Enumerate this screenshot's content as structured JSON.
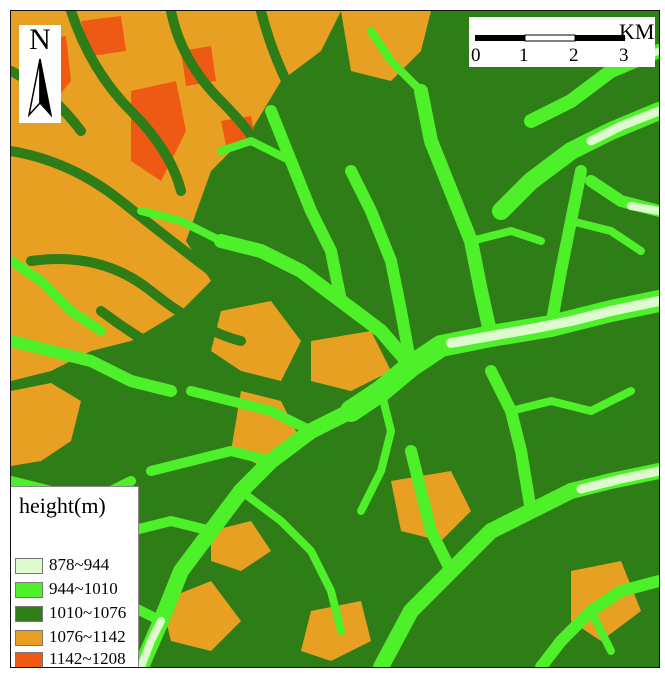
{
  "map": {
    "north_label": "N",
    "scale_bar": {
      "ticks": [
        "0",
        "1",
        "2",
        "3"
      ],
      "unit": "KM"
    },
    "legend": {
      "title": "height(m)",
      "classes": [
        {
          "label": "878~944",
          "color": "#dcfccd"
        },
        {
          "label": "944~1010",
          "color": "#4ef02a"
        },
        {
          "label": "1010~1076",
          "color": "#2e7d16"
        },
        {
          "label": "1076~1142",
          "color": "#e8a022"
        },
        {
          "label": "1142~1208",
          "color": "#ee5a14"
        }
      ]
    },
    "colors": {
      "valley_floor": "#dcfccd",
      "low_slope": "#4ef02a",
      "mid_slope": "#2e7d16",
      "ridge": "#e8a022",
      "summit": "#ee5a14"
    }
  }
}
